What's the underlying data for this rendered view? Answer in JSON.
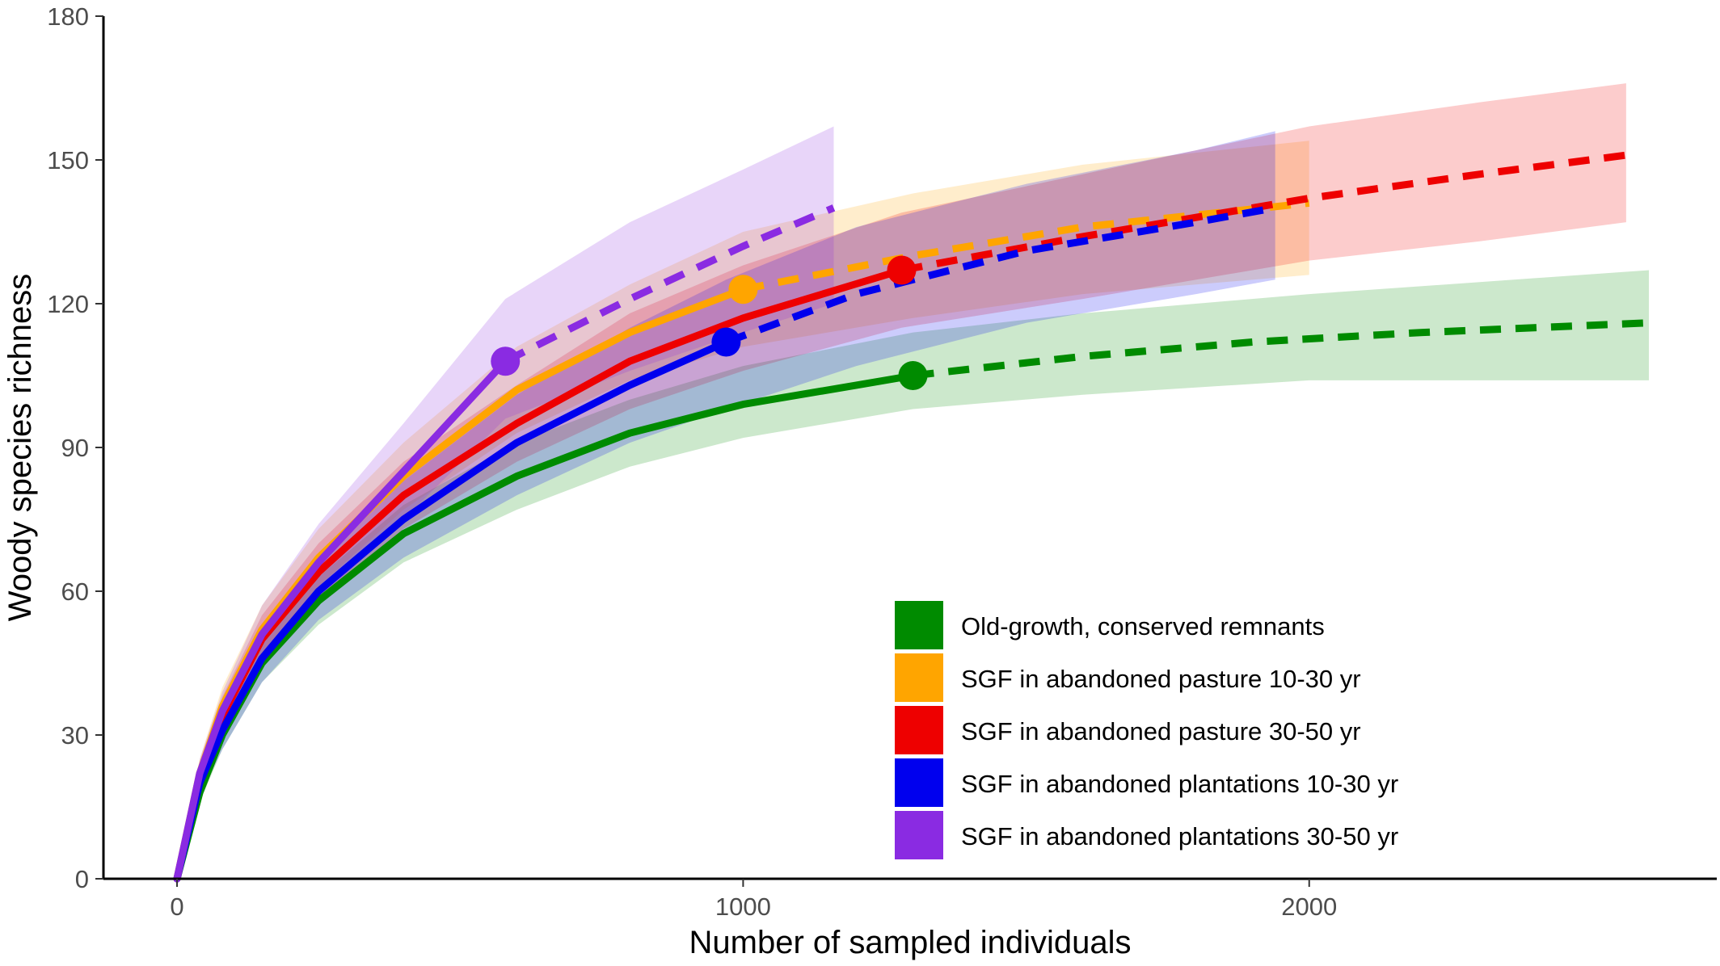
{
  "chart_data": {
    "type": "line",
    "title": "",
    "xlabel": "Number of sampled individuals",
    "ylabel": "Woody species richness",
    "xlim": [
      -130,
      2720
    ],
    "ylim": [
      0,
      180
    ],
    "x_ticks": [
      0,
      1000,
      2000
    ],
    "y_ticks": [
      0,
      30,
      60,
      90,
      120,
      150,
      180
    ],
    "grid": false,
    "legend_position": "bottom-right",
    "series": [
      {
        "name": "Old-growth, conserved remnants",
        "color": "#008B00",
        "observed_n": 1300,
        "observed_richness": 105,
        "interpolated": [
          [
            0,
            0
          ],
          [
            40,
            18
          ],
          [
            80,
            30
          ],
          [
            150,
            45
          ],
          [
            250,
            58
          ],
          [
            400,
            72
          ],
          [
            600,
            84
          ],
          [
            800,
            93
          ],
          [
            1000,
            99
          ],
          [
            1200,
            103
          ],
          [
            1300,
            105
          ]
        ],
        "extrapolated": [
          [
            1300,
            105
          ],
          [
            1600,
            109
          ],
          [
            1900,
            112
          ],
          [
            2200,
            114
          ],
          [
            2600,
            116
          ]
        ],
        "ci": [
          [
            0,
            0,
            0
          ],
          [
            40,
            16,
            20
          ],
          [
            80,
            27,
            33
          ],
          [
            150,
            41,
            49
          ],
          [
            250,
            53,
            63
          ],
          [
            400,
            66,
            78
          ],
          [
            600,
            77,
            91
          ],
          [
            800,
            86,
            100
          ],
          [
            1000,
            92,
            107
          ],
          [
            1300,
            98,
            114
          ],
          [
            1600,
            101,
            118
          ],
          [
            2000,
            104,
            122
          ],
          [
            2600,
            104,
            127
          ]
        ]
      },
      {
        "name": "SGF in abandoned pasture 10-30 yr",
        "color": "#FFA500",
        "observed_n": 1000,
        "observed_richness": 123,
        "interpolated": [
          [
            0,
            0
          ],
          [
            40,
            22
          ],
          [
            80,
            36
          ],
          [
            150,
            52
          ],
          [
            250,
            67
          ],
          [
            400,
            84
          ],
          [
            600,
            102
          ],
          [
            800,
            114
          ],
          [
            1000,
            123
          ]
        ],
        "extrapolated": [
          [
            1000,
            123
          ],
          [
            1300,
            130
          ],
          [
            1600,
            136
          ],
          [
            2000,
            141
          ]
        ],
        "ci": [
          [
            0,
            0,
            0
          ],
          [
            40,
            19,
            25
          ],
          [
            80,
            32,
            40
          ],
          [
            150,
            47,
            57
          ],
          [
            250,
            61,
            73
          ],
          [
            400,
            77,
            91
          ],
          [
            600,
            93,
            111
          ],
          [
            800,
            104,
            124
          ],
          [
            1000,
            111,
            135
          ],
          [
            1300,
            117,
            143
          ],
          [
            1600,
            122,
            149
          ],
          [
            2000,
            126,
            154
          ]
        ]
      },
      {
        "name": "SGF in abandoned pasture 30-50 yr",
        "color": "#EE0000",
        "observed_n": 1280,
        "observed_richness": 127,
        "interpolated": [
          [
            0,
            0
          ],
          [
            40,
            21
          ],
          [
            80,
            34
          ],
          [
            150,
            50
          ],
          [
            250,
            64
          ],
          [
            400,
            80
          ],
          [
            600,
            95
          ],
          [
            800,
            108
          ],
          [
            1000,
            117
          ],
          [
            1280,
            127
          ]
        ],
        "extrapolated": [
          [
            1280,
            127
          ],
          [
            1600,
            134
          ],
          [
            2000,
            142
          ],
          [
            2300,
            147
          ],
          [
            2560,
            151
          ]
        ],
        "ci": [
          [
            0,
            0,
            0
          ],
          [
            40,
            18,
            24
          ],
          [
            80,
            30,
            38
          ],
          [
            150,
            45,
            55
          ],
          [
            250,
            58,
            70
          ],
          [
            400,
            73,
            87
          ],
          [
            600,
            87,
            103
          ],
          [
            800,
            98,
            118
          ],
          [
            1000,
            106,
            128
          ],
          [
            1280,
            115,
            139
          ],
          [
            1600,
            121,
            147
          ],
          [
            2000,
            129,
            157
          ],
          [
            2300,
            133,
            162
          ],
          [
            2560,
            137,
            166
          ]
        ]
      },
      {
        "name": "SGF in abandoned plantations 10-30 yr",
        "color": "#0000EE",
        "observed_n": 970,
        "observed_richness": 112,
        "interpolated": [
          [
            0,
            0
          ],
          [
            40,
            20
          ],
          [
            80,
            31
          ],
          [
            150,
            46
          ],
          [
            250,
            60
          ],
          [
            400,
            75
          ],
          [
            600,
            91
          ],
          [
            800,
            103
          ],
          [
            970,
            112
          ]
        ],
        "extrapolated": [
          [
            970,
            112
          ],
          [
            1200,
            122
          ],
          [
            1500,
            131
          ],
          [
            1800,
            137
          ],
          [
            1940,
            140
          ]
        ],
        "ci": [
          [
            0,
            0,
            0
          ],
          [
            40,
            17,
            23
          ],
          [
            80,
            27,
            35
          ],
          [
            150,
            41,
            51
          ],
          [
            250,
            54,
            66
          ],
          [
            400,
            67,
            83
          ],
          [
            600,
            80,
            101
          ],
          [
            800,
            91,
            115
          ],
          [
            970,
            98,
            125
          ],
          [
            1200,
            107,
            136
          ],
          [
            1500,
            116,
            145
          ],
          [
            1800,
            122,
            152
          ],
          [
            1940,
            125,
            156
          ]
        ]
      },
      {
        "name": "SGF in abandoned plantations 30-50 yr",
        "color": "#8A2BE2",
        "observed_n": 580,
        "observed_richness": 108,
        "interpolated": [
          [
            0,
            0
          ],
          [
            40,
            22
          ],
          [
            80,
            35
          ],
          [
            150,
            51
          ],
          [
            250,
            66
          ],
          [
            400,
            85
          ],
          [
            580,
            108
          ]
        ],
        "extrapolated": [
          [
            580,
            108
          ],
          [
            800,
            121
          ],
          [
            1000,
            132
          ],
          [
            1160,
            140
          ]
        ],
        "ci": [
          [
            0,
            0,
            0
          ],
          [
            40,
            19,
            25
          ],
          [
            80,
            31,
            39
          ],
          [
            150,
            45,
            57
          ],
          [
            250,
            58,
            74
          ],
          [
            400,
            75,
            95
          ],
          [
            580,
            96,
            121
          ],
          [
            800,
            106,
            137
          ],
          [
            1000,
            114,
            148
          ],
          [
            1160,
            120,
            157
          ]
        ]
      }
    ]
  }
}
